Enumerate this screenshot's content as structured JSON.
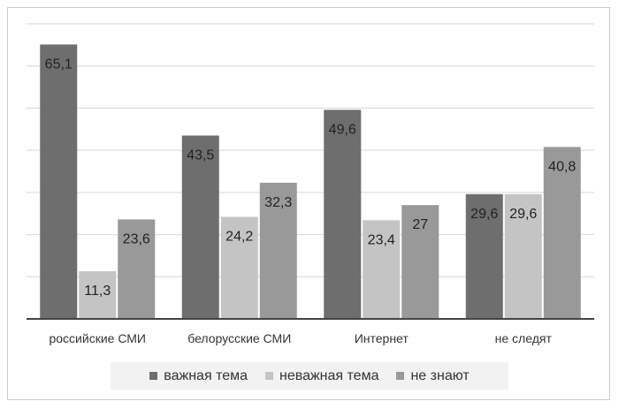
{
  "chart_data": {
    "type": "bar",
    "categories": [
      "российские СМИ",
      "белорусские СМИ",
      "Интернет",
      "не следят"
    ],
    "series": [
      {
        "name": "важная тема",
        "values": [
          65.1,
          43.5,
          49.6,
          29.6
        ],
        "color": "#6e6e6e"
      },
      {
        "name": "неважная тема",
        "values": [
          11.3,
          24.2,
          23.4,
          29.6
        ],
        "color": "#c4c4c4"
      },
      {
        "name": "не знают",
        "values": [
          23.6,
          32.3,
          27,
          40.8
        ],
        "color": "#999999"
      }
    ],
    "ylim": [
      0,
      70
    ],
    "grid": true,
    "legend": "bottom"
  }
}
